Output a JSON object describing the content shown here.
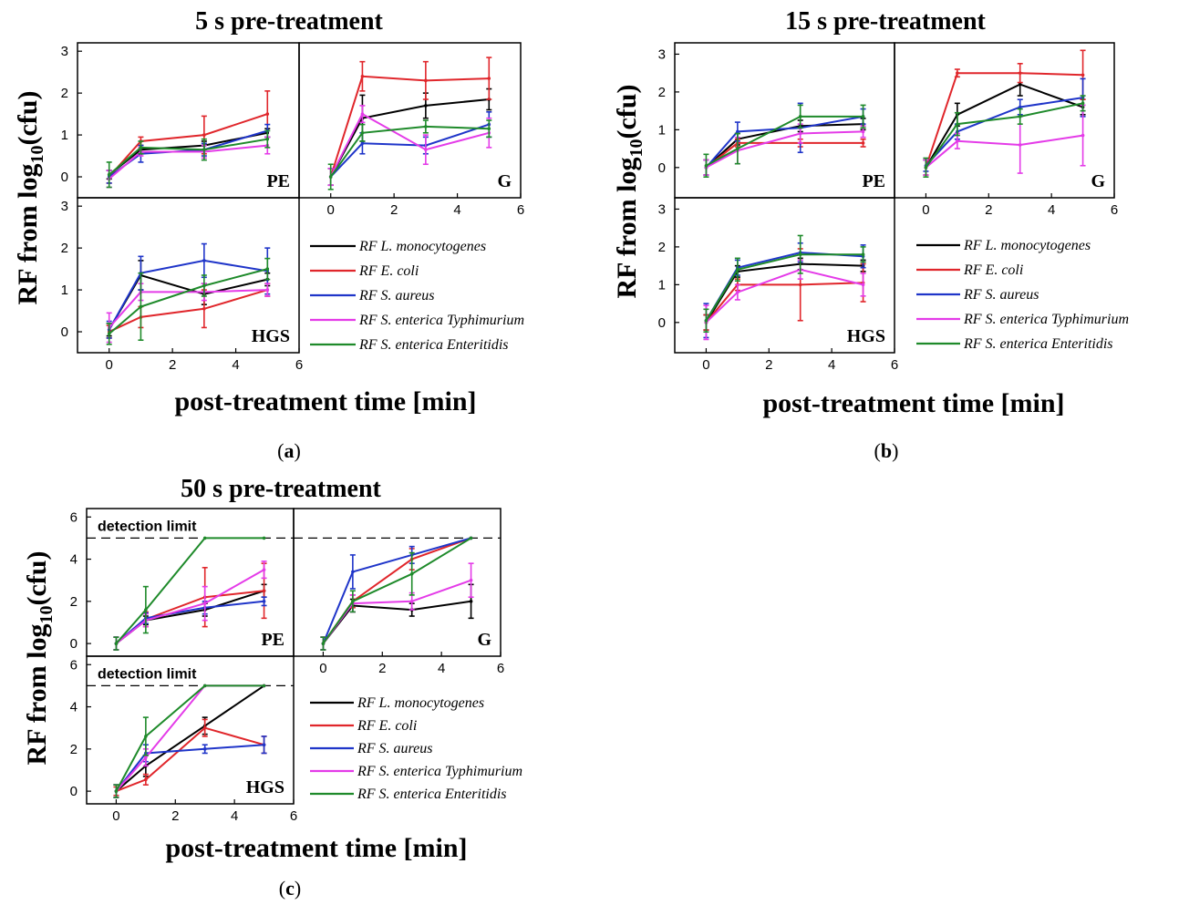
{
  "colors": {
    "L_monocytogenes": "#000000",
    "E_coli": "#e0262b",
    "S_aureus": "#1f35c9",
    "S_Typhimurium": "#e43be8",
    "S_Enteritidis": "#1e8a2a"
  },
  "chart_data": [
    {
      "id": "a",
      "type": "line",
      "title": "5 s pre-treatment",
      "sublabel": "a",
      "ylabel": "RF from log10(cfu)",
      "xlabel": "post-treatment time [min]",
      "xlim": [
        -1,
        6
      ],
      "ylim": [
        -0.5,
        3.2
      ],
      "xticks": [
        "0",
        "2",
        "4",
        "6"
      ],
      "yticks": [
        "0",
        "1",
        "2",
        "3"
      ],
      "legend": [
        "RF L. monocytogenes",
        "RF E. coli",
        "RF S. aureus",
        "RF S. enterica Typhimurium",
        "RF S. enterica Enteritidis"
      ],
      "panels": [
        {
          "name": "PE",
          "x": [
            0,
            1,
            3,
            5
          ],
          "series": [
            {
              "name": "RF L. monocytogenes",
              "values": [
                0.05,
                0.65,
                0.75,
                1.05
              ],
              "err": [
                0.1,
                0.1,
                0.1,
                0.1
              ]
            },
            {
              "name": "RF E. coli",
              "values": [
                0.0,
                0.85,
                1.0,
                1.5
              ],
              "err": [
                0.15,
                0.1,
                0.45,
                0.55
              ]
            },
            {
              "name": "RF S. aureus",
              "values": [
                0.0,
                0.55,
                0.65,
                1.1
              ],
              "err": [
                0.15,
                0.2,
                0.15,
                0.15
              ]
            },
            {
              "name": "RF S. enterica Typhimurium",
              "values": [
                -0.05,
                0.6,
                0.6,
                0.75
              ],
              "err": [
                0.2,
                0.1,
                0.15,
                0.2
              ]
            },
            {
              "name": "RF S. enterica Enteritidis",
              "values": [
                0.05,
                0.7,
                0.65,
                0.9
              ],
              "err": [
                0.3,
                0.15,
                0.25,
                0.2
              ]
            }
          ]
        },
        {
          "name": "G",
          "x": [
            0,
            1,
            3,
            5
          ],
          "series": [
            {
              "name": "RF L. monocytogenes",
              "values": [
                0.0,
                1.4,
                1.7,
                1.85
              ],
              "err": [
                0.2,
                0.55,
                0.3,
                0.25
              ]
            },
            {
              "name": "RF E. coli",
              "values": [
                0.0,
                2.4,
                2.3,
                2.35
              ],
              "err": [
                0.2,
                0.35,
                0.45,
                0.5
              ]
            },
            {
              "name": "RF S. aureus",
              "values": [
                0.0,
                0.8,
                0.75,
                1.25
              ],
              "err": [
                0.2,
                0.25,
                0.2,
                0.3
              ]
            },
            {
              "name": "RF S. enterica Typhimurium",
              "values": [
                0.0,
                1.5,
                0.65,
                1.05
              ],
              "err": [
                0.2,
                0.2,
                0.35,
                0.35
              ]
            },
            {
              "name": "RF S. enterica Enteritidis",
              "values": [
                0.0,
                1.05,
                1.2,
                1.15
              ],
              "err": [
                0.3,
                0.2,
                0.15,
                0.2
              ]
            }
          ]
        },
        {
          "name": "HGS",
          "x": [
            0,
            1,
            3,
            5
          ],
          "series": [
            {
              "name": "RF L. monocytogenes",
              "values": [
                0.05,
                1.35,
                0.9,
                1.25
              ],
              "err": [
                0.15,
                0.35,
                0.25,
                0.15
              ]
            },
            {
              "name": "RF E. coli",
              "values": [
                0.0,
                0.35,
                0.55,
                1.0
              ],
              "err": [
                0.15,
                0.25,
                0.45,
                0.15
              ]
            },
            {
              "name": "RF S. aureus",
              "values": [
                0.05,
                1.4,
                1.7,
                1.45
              ],
              "err": [
                0.2,
                0.4,
                0.4,
                0.55
              ]
            },
            {
              "name": "RF S. enterica Typhimurium",
              "values": [
                0.1,
                0.95,
                0.95,
                1.0
              ],
              "err": [
                0.35,
                0.2,
                0.2,
                0.15
              ]
            },
            {
              "name": "RF S. enterica Enteritidis",
              "values": [
                -0.05,
                0.6,
                1.1,
                1.5
              ],
              "err": [
                0.25,
                0.8,
                0.25,
                0.25
              ]
            }
          ]
        }
      ]
    },
    {
      "id": "b",
      "type": "line",
      "title": "15 s pre-treatment",
      "sublabel": "b",
      "ylabel": "RF from log10(cfu)",
      "xlabel": "post-treatment time [min]",
      "xlim": [
        -1,
        6
      ],
      "ylim": [
        -0.8,
        3.3
      ],
      "xticks": [
        "0",
        "2",
        "4",
        "6"
      ],
      "yticks": [
        "0",
        "1",
        "2",
        "3"
      ],
      "legend": [
        "RF L. monocytogenes",
        "RF E. coli",
        "RF S. aureus",
        "RF S. enterica Typhimurium",
        "RF S. enterica Enteritidis"
      ],
      "panels": [
        {
          "name": "PE",
          "x": [
            0,
            1,
            3,
            5
          ],
          "series": [
            {
              "name": "RF L. monocytogenes",
              "values": [
                0.0,
                0.75,
                1.1,
                1.15
              ],
              "err": [
                0.2,
                0.15,
                0.15,
                0.15
              ]
            },
            {
              "name": "RF E. coli",
              "values": [
                0.0,
                0.65,
                0.65,
                0.65
              ],
              "err": [
                0.2,
                0.1,
                0.1,
                0.1
              ]
            },
            {
              "name": "RF S. aureus",
              "values": [
                0.0,
                0.95,
                1.05,
                1.35
              ],
              "err": [
                0.2,
                0.25,
                0.65,
                0.2
              ]
            },
            {
              "name": "RF S. enterica Typhimurium",
              "values": [
                0.0,
                0.45,
                0.9,
                0.95
              ],
              "err": [
                0.2,
                0.35,
                0.25,
                0.15
              ]
            },
            {
              "name": "RF S. enterica Enteritidis",
              "values": [
                0.05,
                0.5,
                1.35,
                1.35
              ],
              "err": [
                0.3,
                0.4,
                0.3,
                0.3
              ]
            }
          ]
        },
        {
          "name": "G",
          "x": [
            0,
            1,
            3,
            5
          ],
          "series": [
            {
              "name": "RF L. monocytogenes",
              "values": [
                0.0,
                1.4,
                2.2,
                1.6
              ],
              "err": [
                0.2,
                0.3,
                0.3,
                0.2
              ]
            },
            {
              "name": "RF E. coli",
              "values": [
                0.0,
                2.5,
                2.5,
                2.45
              ],
              "err": [
                0.2,
                0.1,
                0.25,
                0.65
              ]
            },
            {
              "name": "RF S. aureus",
              "values": [
                0.05,
                0.95,
                1.6,
                1.85
              ],
              "err": [
                0.15,
                0.2,
                0.2,
                0.5
              ]
            },
            {
              "name": "RF S. enterica Typhimurium",
              "values": [
                0.0,
                0.7,
                0.6,
                0.85
              ],
              "err": [
                0.2,
                0.2,
                0.75,
                0.8
              ]
            },
            {
              "name": "RF S. enterica Enteritidis",
              "values": [
                0.0,
                1.15,
                1.35,
                1.7
              ],
              "err": [
                0.25,
                0.3,
                0.2,
                0.2
              ]
            }
          ]
        },
        {
          "name": "HGS",
          "x": [
            0,
            1,
            3,
            5
          ],
          "series": [
            {
              "name": "RF L. monocytogenes",
              "values": [
                0.0,
                1.35,
                1.55,
                1.5
              ],
              "err": [
                0.2,
                0.15,
                0.15,
                0.15
              ]
            },
            {
              "name": "RF E. coli",
              "values": [
                0.0,
                1.0,
                1.0,
                1.05
              ],
              "err": [
                0.2,
                0.15,
                0.95,
                0.5
              ]
            },
            {
              "name": "RF S. aureus",
              "values": [
                0.05,
                1.45,
                1.85,
                1.75
              ],
              "err": [
                0.45,
                0.2,
                0.25,
                0.3
              ]
            },
            {
              "name": "RF S. enterica Typhimurium",
              "values": [
                0.0,
                0.8,
                1.4,
                1.0
              ],
              "err": [
                0.45,
                0.2,
                0.25,
                0.3
              ]
            },
            {
              "name": "RF S. enterica Enteritidis",
              "values": [
                0.05,
                1.4,
                1.8,
                1.8
              ],
              "err": [
                0.3,
                0.3,
                0.5,
                0.2
              ]
            }
          ]
        }
      ]
    },
    {
      "id": "c",
      "type": "line",
      "title": "50 s pre-treatment",
      "sublabel": "c",
      "ylabel": "RF from log10(cfu)",
      "xlabel": "post-treatment time [min]",
      "xlim": [
        -1,
        6
      ],
      "ylim": [
        -0.6,
        6.4
      ],
      "xticks": [
        "0",
        "2",
        "4",
        "6"
      ],
      "yticks": [
        "0",
        "2",
        "4",
        "6"
      ],
      "detection_limit": 5,
      "detection_label": "detection limit",
      "legend": [
        "RF L. monocytogenes",
        "RF E. coli",
        "RF S. aureus",
        "RF S. enterica Typhimurium",
        "RF S. enterica Enteritidis"
      ],
      "panels": [
        {
          "name": "PE",
          "x": [
            0,
            1,
            3,
            5
          ],
          "series": [
            {
              "name": "RF L. monocytogenes",
              "values": [
                0.0,
                1.1,
                1.6,
                2.5
              ],
              "err": [
                0.3,
                0.2,
                0.3,
                0.3
              ]
            },
            {
              "name": "RF E. coli",
              "values": [
                0.0,
                1.15,
                2.2,
                2.5
              ],
              "err": [
                0.3,
                0.35,
                1.4,
                1.3
              ]
            },
            {
              "name": "RF S. aureus",
              "values": [
                0.0,
                1.2,
                1.7,
                2.0
              ],
              "err": [
                0.3,
                0.25,
                0.3,
                0.2
              ]
            },
            {
              "name": "RF S. enterica Typhimurium",
              "values": [
                0.0,
                1.1,
                1.9,
                3.5
              ],
              "err": [
                0.3,
                0.3,
                0.8,
                0.4
              ]
            },
            {
              "name": "RF S. enterica Enteritidis",
              "values": [
                0.0,
                1.6,
                5.0,
                5.0
              ],
              "err": [
                0.3,
                1.1,
                0.0,
                0.0
              ]
            }
          ]
        },
        {
          "name": "G",
          "x": [
            0,
            1,
            3,
            5
          ],
          "series": [
            {
              "name": "RF L. monocytogenes",
              "values": [
                0.0,
                1.8,
                1.6,
                2.0
              ],
              "err": [
                0.3,
                0.3,
                0.3,
                0.8
              ]
            },
            {
              "name": "RF E. coli",
              "values": [
                0.0,
                2.0,
                4.0,
                5.0
              ],
              "err": [
                0.3,
                0.3,
                0.5,
                0.0
              ]
            },
            {
              "name": "RF S. aureus",
              "values": [
                0.0,
                3.4,
                4.2,
                5.0
              ],
              "err": [
                0.3,
                0.8,
                0.4,
                0.0
              ]
            },
            {
              "name": "RF S. enterica Typhimurium",
              "values": [
                0.0,
                1.9,
                2.0,
                3.0
              ],
              "err": [
                0.3,
                0.4,
                0.4,
                0.8
              ]
            },
            {
              "name": "RF S. enterica Enteritidis",
              "values": [
                0.0,
                2.0,
                3.3,
                5.0
              ],
              "err": [
                0.3,
                0.5,
                1.0,
                0.0
              ]
            }
          ]
        },
        {
          "name": "HGS",
          "x": [
            0,
            1,
            3,
            5
          ],
          "series": [
            {
              "name": "RF L. monocytogenes",
              "values": [
                0.0,
                1.2,
                3.1,
                5.0
              ],
              "err": [
                0.3,
                0.5,
                0.4,
                0.0
              ]
            },
            {
              "name": "RF E. coli",
              "values": [
                0.0,
                0.55,
                3.0,
                2.2
              ],
              "err": [
                0.2,
                0.25,
                0.4,
                0.4
              ]
            },
            {
              "name": "RF S. aureus",
              "values": [
                0.0,
                1.8,
                2.0,
                2.2
              ],
              "err": [
                0.3,
                0.4,
                0.2,
                0.4
              ]
            },
            {
              "name": "RF S. enterica Typhimurium",
              "values": [
                0.0,
                1.6,
                5.0,
                5.0
              ],
              "err": [
                0.3,
                0.4,
                0.0,
                0.0
              ]
            },
            {
              "name": "RF S. enterica Enteritidis",
              "values": [
                0.0,
                2.6,
                5.0,
                5.0
              ],
              "err": [
                0.3,
                0.9,
                0.0,
                0.0
              ]
            }
          ]
        }
      ]
    }
  ]
}
